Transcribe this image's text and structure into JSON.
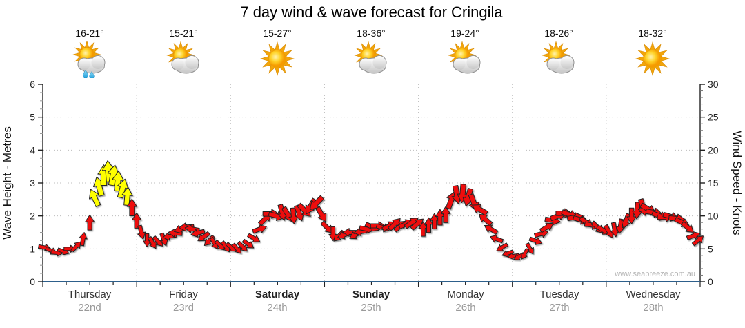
{
  "title": "7 day wind & wave forecast for Cringila",
  "watermark": "www.seabreeze.com.au",
  "axes": {
    "left_label": "Wave Height - Metres",
    "right_label": "Wind Speed - Knots",
    "wave_ticks": [
      "0",
      "1",
      "2",
      "3",
      "4",
      "5",
      "6"
    ],
    "knot_ticks": [
      "0",
      "5",
      "10",
      "15",
      "20",
      "25",
      "30"
    ]
  },
  "days": [
    {
      "name": "Thursday",
      "date": "22nd",
      "temp": "16-21°",
      "icon": "sun-cloud-rain-icon",
      "weekend": false
    },
    {
      "name": "Friday",
      "date": "23rd",
      "temp": "15-21°",
      "icon": "sun-cloud-icon",
      "weekend": false
    },
    {
      "name": "Saturday",
      "date": "24th",
      "temp": "15-27°",
      "icon": "sun-icon",
      "weekend": true
    },
    {
      "name": "Sunday",
      "date": "25th",
      "temp": "18-36°",
      "icon": "sun-cloud-icon",
      "weekend": true
    },
    {
      "name": "Monday",
      "date": "26th",
      "temp": "19-24°",
      "icon": "sun-cloud-icon",
      "weekend": false
    },
    {
      "name": "Tuesday",
      "date": "27th",
      "temp": "18-26°",
      "icon": "sun-cloud-icon",
      "weekend": false
    },
    {
      "name": "Wednesday",
      "date": "28th",
      "temp": "18-32°",
      "icon": "sun-icon",
      "weekend": false
    }
  ],
  "chart_data": {
    "type": "wind-arrow-series",
    "title": "7 day wind & wave forecast for Cringila",
    "x_axis": {
      "label_days": [
        "Thursday 22nd",
        "Friday 23rd",
        "Saturday 24th",
        "Sunday 25th",
        "Monday 26th",
        "Tuesday 27th",
        "Wednesday 28th"
      ],
      "range_days": 7,
      "gridlines": "dotted at day boundaries"
    },
    "left_axis": {
      "label": "Wave Height - Metres",
      "min": 0,
      "max": 6,
      "major_step": 1
    },
    "right_axis": {
      "label": "Wind Speed - Knots",
      "min": 0,
      "max": 30,
      "major_step": 5
    },
    "colors": {
      "wind_normal": "#ee1111",
      "wind_strong": "#ffff00",
      "outline": "#222222",
      "grid": "#bdbdbd",
      "x_axis_line": "#2d5f8b",
      "axis_line": "#222222"
    },
    "points_format": "[time_days, wind_knots, arrow_dir_deg_cw_from_east, strong_wind_flag]",
    "points": [
      [
        0.02,
        5.2,
        10,
        0
      ],
      [
        0.09,
        4.7,
        25,
        0
      ],
      [
        0.15,
        4.4,
        5,
        0
      ],
      [
        0.22,
        4.6,
        20,
        0
      ],
      [
        0.29,
        5.0,
        0,
        0
      ],
      [
        0.36,
        5.4,
        -45,
        0
      ],
      [
        0.43,
        6.5,
        -80,
        0
      ],
      [
        0.5,
        9.0,
        -90,
        0
      ],
      [
        0.55,
        12.8,
        -115,
        1
      ],
      [
        0.6,
        14.5,
        -105,
        1
      ],
      [
        0.65,
        16.2,
        -90,
        1
      ],
      [
        0.7,
        16.8,
        -95,
        1
      ],
      [
        0.75,
        16.2,
        -80,
        1
      ],
      [
        0.8,
        15.3,
        -85,
        1
      ],
      [
        0.85,
        14.2,
        -75,
        1
      ],
      [
        0.9,
        13.0,
        -85,
        1
      ],
      [
        0.95,
        11.3,
        -90,
        0
      ],
      [
        1.0,
        9.3,
        -90,
        0
      ],
      [
        1.05,
        7.5,
        75,
        0
      ],
      [
        1.11,
        6.3,
        90,
        0
      ],
      [
        1.17,
        5.9,
        60,
        0
      ],
      [
        1.23,
        6.1,
        45,
        0
      ],
      [
        1.29,
        6.4,
        70,
        0
      ],
      [
        1.35,
        6.9,
        170,
        0
      ],
      [
        1.41,
        7.4,
        185,
        0
      ],
      [
        1.47,
        8.0,
        160,
        0
      ],
      [
        1.53,
        8.3,
        175,
        0
      ],
      [
        1.59,
        8.0,
        190,
        0
      ],
      [
        1.65,
        7.4,
        165,
        0
      ],
      [
        1.71,
        6.8,
        145,
        0
      ],
      [
        1.77,
        6.2,
        135,
        0
      ],
      [
        1.83,
        5.8,
        60,
        0
      ],
      [
        1.89,
        5.5,
        45,
        0
      ],
      [
        1.95,
        5.3,
        55,
        0
      ],
      [
        2.01,
        5.2,
        40,
        0
      ],
      [
        2.07,
        5.0,
        50,
        0
      ],
      [
        2.13,
        5.3,
        45,
        0
      ],
      [
        2.19,
        5.7,
        35,
        0
      ],
      [
        2.25,
        6.6,
        30,
        0
      ],
      [
        2.31,
        8.0,
        -20,
        0
      ],
      [
        2.37,
        9.6,
        -45,
        0
      ],
      [
        2.43,
        10.3,
        0,
        0
      ],
      [
        2.49,
        10.0,
        15,
        0
      ],
      [
        2.55,
        10.5,
        75,
        0
      ],
      [
        2.61,
        10.2,
        60,
        0
      ],
      [
        2.67,
        10.0,
        85,
        0
      ],
      [
        2.73,
        10.4,
        70,
        0
      ],
      [
        2.79,
        10.8,
        45,
        0
      ],
      [
        2.85,
        11.4,
        120,
        0
      ],
      [
        2.91,
        11.9,
        135,
        0
      ],
      [
        2.97,
        10.2,
        60,
        0
      ],
      [
        3.03,
        8.2,
        45,
        0
      ],
      [
        3.09,
        7.3,
        90,
        0
      ],
      [
        3.15,
        6.9,
        135,
        0
      ],
      [
        3.21,
        7.1,
        160,
        0
      ],
      [
        3.27,
        7.5,
        180,
        0
      ],
      [
        3.33,
        7.1,
        150,
        0
      ],
      [
        3.39,
        7.6,
        170,
        0
      ],
      [
        3.45,
        8.0,
        10,
        0
      ],
      [
        3.51,
        8.3,
        25,
        0
      ],
      [
        3.57,
        8.5,
        0,
        0
      ],
      [
        3.63,
        8.2,
        15,
        0
      ],
      [
        3.69,
        8.5,
        -30,
        0
      ],
      [
        3.75,
        8.8,
        -45,
        0
      ],
      [
        3.81,
        8.5,
        -40,
        0
      ],
      [
        3.87,
        8.8,
        -25,
        0
      ],
      [
        3.93,
        9.0,
        -35,
        0
      ],
      [
        3.99,
        8.8,
        -40,
        0
      ],
      [
        4.05,
        8.0,
        -90,
        0
      ],
      [
        4.11,
        8.6,
        -90,
        0
      ],
      [
        4.17,
        9.2,
        -90,
        0
      ],
      [
        4.23,
        9.8,
        -90,
        0
      ],
      [
        4.29,
        10.2,
        -90,
        0
      ],
      [
        4.35,
        12.4,
        -70,
        0
      ],
      [
        4.41,
        13.2,
        80,
        0
      ],
      [
        4.47,
        13.4,
        95,
        0
      ],
      [
        4.53,
        12.8,
        105,
        0
      ],
      [
        4.59,
        12.0,
        70,
        0
      ],
      [
        4.65,
        11.0,
        -150,
        0
      ],
      [
        4.71,
        9.5,
        -140,
        0
      ],
      [
        4.77,
        8.0,
        -150,
        0
      ],
      [
        4.83,
        6.5,
        -160,
        0
      ],
      [
        4.89,
        5.2,
        150,
        0
      ],
      [
        4.95,
        4.3,
        160,
        0
      ],
      [
        5.01,
        3.9,
        170,
        0
      ],
      [
        5.07,
        3.8,
        150,
        0
      ],
      [
        5.13,
        4.2,
        120,
        0
      ],
      [
        5.19,
        5.0,
        60,
        0
      ],
      [
        5.25,
        6.2,
        20,
        0
      ],
      [
        5.31,
        7.3,
        -15,
        0
      ],
      [
        5.37,
        8.3,
        -30,
        0
      ],
      [
        5.43,
        9.3,
        10,
        0
      ],
      [
        5.49,
        10.0,
        -20,
        0
      ],
      [
        5.55,
        10.4,
        0,
        0
      ],
      [
        5.61,
        10.2,
        20,
        0
      ],
      [
        5.67,
        9.8,
        -10,
        0
      ],
      [
        5.73,
        9.4,
        15,
        0
      ],
      [
        5.79,
        9.0,
        35,
        0
      ],
      [
        5.85,
        8.6,
        10,
        0
      ],
      [
        5.91,
        8.2,
        45,
        0
      ],
      [
        5.97,
        7.8,
        30,
        0
      ],
      [
        6.03,
        7.6,
        60,
        0
      ],
      [
        6.09,
        7.9,
        80,
        0
      ],
      [
        6.15,
        8.4,
        100,
        0
      ],
      [
        6.21,
        9.2,
        110,
        0
      ],
      [
        6.27,
        10.0,
        90,
        0
      ],
      [
        6.33,
        10.8,
        95,
        0
      ],
      [
        6.39,
        11.3,
        75,
        0
      ],
      [
        6.45,
        11.0,
        30,
        0
      ],
      [
        6.51,
        10.5,
        10,
        0
      ],
      [
        6.57,
        10.0,
        20,
        0
      ],
      [
        6.63,
        9.8,
        0,
        0
      ],
      [
        6.69,
        9.9,
        15,
        0
      ],
      [
        6.75,
        9.6,
        5,
        0
      ],
      [
        6.81,
        9.0,
        25,
        0
      ],
      [
        6.87,
        8.2,
        40,
        0
      ],
      [
        6.93,
        7.0,
        -20,
        0
      ],
      [
        6.98,
        6.3,
        -40,
        0
      ]
    ]
  }
}
